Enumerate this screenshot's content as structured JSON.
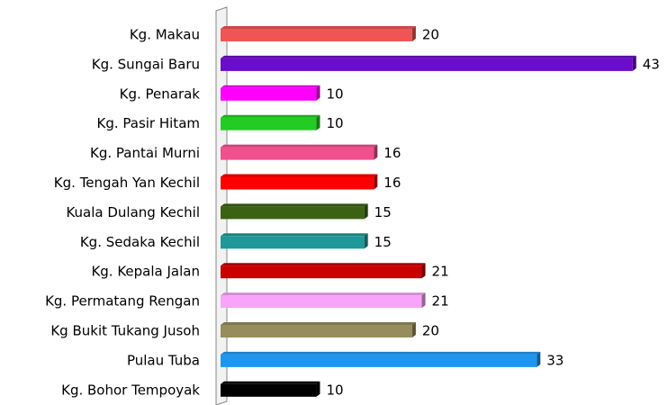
{
  "chart_data": {
    "type": "hbar",
    "categories": [
      "Kg. Makau",
      "Kg. Sungai Baru",
      "Kg. Penarak",
      "Kg. Pasir Hitam",
      "Kg. Pantai Murni",
      "Kg. Tengah Yan Kechil",
      "Kuala Dulang Kechil",
      "Kg. Sedaka Kechil",
      "Kg. Kepala Jalan",
      "Kg. Permatang Rengan",
      "Kg Bukit Tukang Jusoh",
      "Pulau Tuba",
      "Kg. Bohor Tempoyak"
    ],
    "values": [
      20,
      43,
      10,
      10,
      16,
      16,
      15,
      15,
      21,
      21,
      20,
      33,
      10
    ],
    "colors": [
      "#f05555",
      "#6a0ccc",
      "#ff00ff",
      "#22cc22",
      "#f0508c",
      "#ff0000",
      "#3a6212",
      "#1e9898",
      "#c80000",
      "#f8a4f8",
      "#968c5c",
      "#1e96f0",
      "#000000"
    ],
    "xlim": [
      0,
      45
    ]
  }
}
